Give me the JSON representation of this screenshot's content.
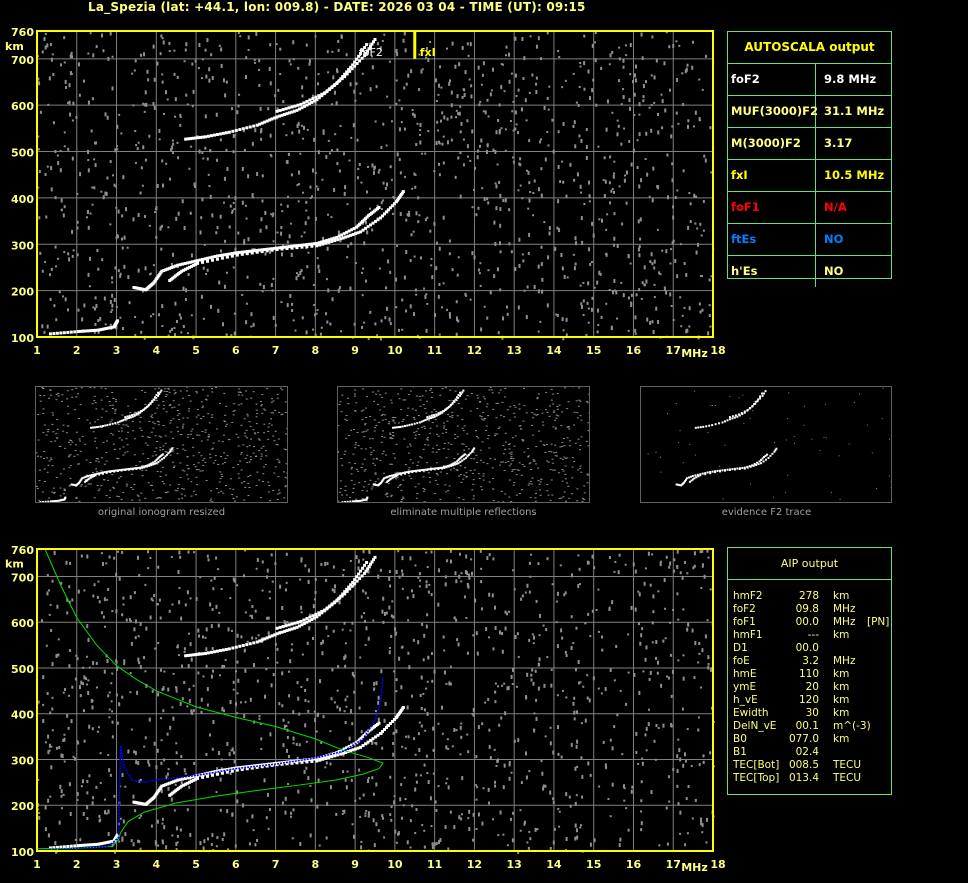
{
  "header": {
    "title": "La_Spezia (lat: +44.1, lon: 009.8) - DATE: 2026 03 04 - TIME (UT): 09:15"
  },
  "colors": {
    "frame": "#ffff00",
    "grid": "#808080",
    "trace": "#ffffff",
    "noise": "#909090",
    "table_border": "#66e07a",
    "profile": "#00dd00",
    "fit": "#0000ff",
    "label": "#ffff80"
  },
  "autoscala": {
    "title": "AUTOSCALA output",
    "rows": [
      {
        "key": "foF2",
        "value": "9.8 MHz",
        "color": "#ffffff"
      },
      {
        "key": "MUF(3000)F2",
        "value": "31.1 MHz",
        "color": "#ffff80"
      },
      {
        "key": "M(3000)F2",
        "value": "3.17",
        "color": "#ffff80"
      },
      {
        "key": "fxI",
        "value": "10.5 MHz",
        "color": "#ffff00"
      },
      {
        "key": "foF1",
        "value": "N/A",
        "color": "#ff0000"
      },
      {
        "key": "ftEs",
        "value": "NO",
        "color": "#0080ff"
      },
      {
        "key": "h'Es",
        "value": "NO",
        "color": "#ffff80"
      }
    ]
  },
  "aip": {
    "title": "AIP output",
    "rows": [
      [
        "hmF2",
        "278",
        "km",
        ""
      ],
      [
        "foF2",
        "09.8",
        "MHz",
        ""
      ],
      [
        "foF1",
        "00.0",
        "MHz",
        "[PN]"
      ],
      [
        "hmF1",
        "---",
        "km",
        ""
      ],
      [
        "D1",
        "00.0",
        "",
        ""
      ],
      [
        "foE",
        "3.2",
        "MHz",
        ""
      ],
      [
        "hmE",
        "110",
        "km",
        ""
      ],
      [
        "ymE",
        "20",
        "km",
        ""
      ],
      [
        "h_vE",
        "120",
        "km",
        ""
      ],
      [
        "Ewidth",
        "30",
        "km",
        ""
      ],
      [
        "DelN_vE",
        "00.1",
        "m^(-3)",
        ""
      ],
      [
        "B0",
        "077.0",
        "km",
        ""
      ],
      [
        "B1",
        "02.4",
        "",
        ""
      ],
      [
        "TEC[Bot]",
        "008.5",
        "TECU",
        ""
      ],
      [
        "TEC[Top]",
        "013.4",
        "TECU",
        ""
      ]
    ]
  },
  "thumbnails": [
    {
      "caption": "original ionogram resized"
    },
    {
      "caption": "eliminate multiple reflections"
    },
    {
      "caption": "evidence F2 trace"
    }
  ],
  "chart_data": [
    {
      "type": "scatter",
      "title": "",
      "xlabel": "MHz",
      "ylabel": "km",
      "xlim": [
        1,
        18
      ],
      "ylim": [
        100,
        760
      ],
      "x_ticks": [
        "1",
        "2",
        "3",
        "4",
        "5",
        "6",
        "7",
        "8",
        "9",
        "10",
        "11",
        "12",
        "13",
        "14",
        "15",
        "16",
        "17",
        "18"
      ],
      "y_ticks": [
        "100",
        "200",
        "300",
        "400",
        "500",
        "600",
        "700",
        "760"
      ],
      "grid": true,
      "annotations": [
        {
          "text": "foF2",
          "x": 9.8
        },
        {
          "text": "fxI",
          "x": 10.5
        }
      ],
      "series": [
        {
          "values": [
            [
              1.3,
              110
            ],
            [
              2,
              115
            ],
            [
              2.5,
              118
            ],
            [
              2.9,
              125
            ],
            [
              3.0,
              140
            ]
          ]
        },
        {
          "values": [
            [
              3.4,
              210
            ],
            [
              3.7,
              205
            ],
            [
              3.9,
              220
            ],
            [
              4.1,
              245
            ],
            [
              4.5,
              258
            ],
            [
              5,
              268
            ],
            [
              5.5,
              278
            ],
            [
              6,
              285
            ],
            [
              6.5,
              290
            ],
            [
              7,
              295
            ],
            [
              7.5,
              300
            ],
            [
              8,
              305
            ],
            [
              8.5,
              318
            ],
            [
              9,
              340
            ],
            [
              9.3,
              365
            ],
            [
              9.6,
              385
            ]
          ]
        },
        {
          "values": [
            [
              4.3,
              225
            ],
            [
              4.6,
              245
            ],
            [
              5,
              262
            ],
            [
              6,
              280
            ],
            [
              7,
              292
            ],
            [
              8,
              300
            ],
            [
              8.6,
              315
            ],
            [
              9.1,
              330
            ],
            [
              9.6,
              360
            ],
            [
              10,
              395
            ],
            [
              10.2,
              420
            ]
          ]
        },
        {
          "values": [
            [
              4.7,
              530
            ],
            [
              5.2,
              535
            ],
            [
              5.8,
              545
            ],
            [
              6.5,
              560
            ],
            [
              7,
              578
            ],
            [
              7.5,
              592
            ],
            [
              8,
              615
            ],
            [
              8.5,
              650
            ],
            [
              8.9,
              690
            ],
            [
              9.3,
              740
            ]
          ]
        },
        {
          "values": [
            [
              7,
              590
            ],
            [
              7.6,
              605
            ],
            [
              8.2,
              630
            ],
            [
              8.7,
              665
            ],
            [
              9.2,
              710
            ],
            [
              9.5,
              750
            ]
          ]
        }
      ]
    },
    {
      "type": "line",
      "title": "",
      "xlabel": "MHz",
      "ylabel": "km",
      "xlim": [
        1,
        18
      ],
      "ylim": [
        100,
        760
      ],
      "x_ticks": [
        "1",
        "2",
        "3",
        "4",
        "5",
        "6",
        "7",
        "8",
        "9",
        "10",
        "11",
        "12",
        "13",
        "14",
        "15",
        "16",
        "17",
        "18"
      ],
      "y_ticks": [
        "100",
        "200",
        "300",
        "400",
        "500",
        "600",
        "700",
        "760"
      ],
      "grid": true,
      "profile": [
        [
          1.2,
          760
        ],
        [
          1.6,
          680
        ],
        [
          2,
          610
        ],
        [
          2.5,
          550
        ],
        [
          3,
          505
        ],
        [
          3.5,
          475
        ],
        [
          4,
          450
        ],
        [
          5,
          415
        ],
        [
          6,
          392
        ],
        [
          7,
          372
        ],
        [
          8,
          345
        ],
        [
          8.7,
          320
        ],
        [
          9.3,
          305
        ],
        [
          9.7,
          292
        ],
        [
          9.6,
          280
        ],
        [
          9.2,
          268
        ],
        [
          8.5,
          255
        ],
        [
          7.5,
          243
        ],
        [
          6.5,
          232
        ],
        [
          5.5,
          220
        ],
        [
          4.5,
          205
        ],
        [
          3.7,
          185
        ],
        [
          3.3,
          165
        ],
        [
          3.1,
          140
        ],
        [
          3.05,
          125
        ],
        [
          2.9,
          110
        ],
        [
          2,
          106
        ],
        [
          1,
          105
        ]
      ],
      "fitted_trace": [
        [
          1,
          102
        ],
        [
          2,
          105
        ],
        [
          2.8,
          110
        ],
        [
          3.05,
          130
        ],
        [
          3.1,
          330
        ],
        [
          3.2,
          280
        ],
        [
          3.4,
          255
        ],
        [
          3.7,
          250
        ],
        [
          4,
          255
        ],
        [
          5,
          265
        ],
        [
          6,
          280
        ],
        [
          7,
          290
        ],
        [
          8,
          303
        ],
        [
          8.7,
          318
        ],
        [
          9.2,
          345
        ],
        [
          9.5,
          385
        ],
        [
          9.65,
          430
        ],
        [
          9.7,
          480
        ]
      ],
      "series": [
        {
          "values": [
            [
              1.3,
              110
            ],
            [
              2,
              115
            ],
            [
              2.5,
              118
            ],
            [
              2.9,
              125
            ],
            [
              3.0,
              140
            ]
          ]
        },
        {
          "values": [
            [
              3.4,
              210
            ],
            [
              3.7,
              205
            ],
            [
              3.9,
              220
            ],
            [
              4.1,
              245
            ],
            [
              4.5,
              258
            ],
            [
              5,
              268
            ],
            [
              5.5,
              278
            ],
            [
              6,
              285
            ],
            [
              6.5,
              290
            ],
            [
              7,
              295
            ],
            [
              7.5,
              300
            ],
            [
              8,
              305
            ],
            [
              8.5,
              318
            ],
            [
              9,
              340
            ],
            [
              9.3,
              365
            ],
            [
              9.6,
              385
            ]
          ]
        },
        {
          "values": [
            [
              4.3,
              225
            ],
            [
              4.6,
              245
            ],
            [
              5,
              262
            ],
            [
              6,
              280
            ],
            [
              7,
              292
            ],
            [
              8,
              300
            ],
            [
              8.6,
              315
            ],
            [
              9.1,
              330
            ],
            [
              9.6,
              360
            ],
            [
              10,
              395
            ],
            [
              10.2,
              420
            ]
          ]
        },
        {
          "values": [
            [
              4.7,
              530
            ],
            [
              5.2,
              535
            ],
            [
              5.8,
              545
            ],
            [
              6.5,
              560
            ],
            [
              7,
              578
            ],
            [
              7.5,
              592
            ],
            [
              8,
              615
            ],
            [
              8.5,
              650
            ],
            [
              8.9,
              690
            ],
            [
              9.3,
              740
            ]
          ]
        },
        {
          "values": [
            [
              7,
              590
            ],
            [
              7.6,
              605
            ],
            [
              8.2,
              630
            ],
            [
              8.7,
              665
            ],
            [
              9.2,
              710
            ],
            [
              9.5,
              750
            ]
          ]
        }
      ]
    }
  ]
}
